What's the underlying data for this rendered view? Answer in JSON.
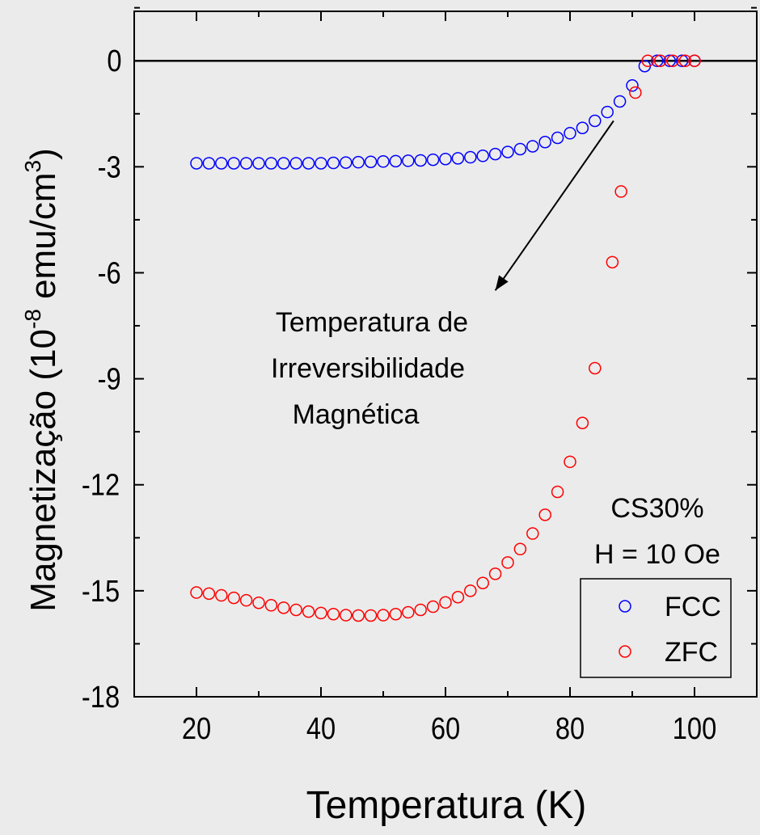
{
  "chart_data": {
    "type": "scatter",
    "xlabel": "Temperatura (K)",
    "ylabel": {
      "prefix": "Magnetização (10",
      "exp1": "-8",
      "mid": " emu/cm",
      "exp2": "3",
      "suffix": ")"
    },
    "xlim": [
      10,
      110
    ],
    "ylim": [
      -18,
      1.4
    ],
    "x_ticks": [
      "20",
      "40",
      "60",
      "80",
      "100"
    ],
    "x_tick_values": [
      20,
      40,
      60,
      80,
      100
    ],
    "y_ticks": [
      "0",
      "-3",
      "-6",
      "-9",
      "-12",
      "-15",
      "-18"
    ],
    "y_tick_values": [
      0,
      -3,
      -6,
      -9,
      -12,
      -15,
      -18
    ],
    "grid": false,
    "zero_line": true,
    "legend_placement": "bottom-right",
    "sample_label": "CS30%",
    "field_label": "H = 10 Oe",
    "annotation": {
      "lines": [
        "Temperatura de",
        "Irreversibilidade",
        "Magnética"
      ],
      "arrow_from": [
        87,
        -1.7
      ],
      "arrow_to": [
        68,
        -6.5
      ]
    },
    "series": [
      {
        "name": "FCC",
        "color": "#0000ff",
        "marker": "open-circle",
        "x": [
          20,
          22,
          24,
          26,
          28,
          30,
          32,
          34,
          36,
          38,
          40,
          42,
          44,
          46,
          48,
          50,
          52,
          54,
          56,
          58,
          60,
          62,
          64,
          66,
          68,
          70,
          72,
          74,
          76,
          78,
          80,
          82,
          84,
          86,
          88,
          90,
          92,
          94,
          96,
          98,
          100
        ],
        "y": [
          -2.9,
          -2.9,
          -2.9,
          -2.9,
          -2.9,
          -2.9,
          -2.9,
          -2.9,
          -2.9,
          -2.9,
          -2.9,
          -2.89,
          -2.88,
          -2.87,
          -2.86,
          -2.85,
          -2.84,
          -2.83,
          -2.82,
          -2.8,
          -2.78,
          -2.76,
          -2.73,
          -2.69,
          -2.64,
          -2.58,
          -2.5,
          -2.42,
          -2.3,
          -2.18,
          -2.05,
          -1.9,
          -1.7,
          -1.45,
          -1.15,
          -0.7,
          -0.15,
          0.0,
          0.0,
          0.0,
          0.0
        ]
      },
      {
        "name": "ZFC",
        "color": "#ff0000",
        "marker": "open-circle",
        "x": [
          20,
          22,
          24,
          26,
          28,
          30,
          32,
          34,
          36,
          38,
          40,
          42,
          44,
          46,
          48,
          50,
          52,
          54,
          56,
          58,
          60,
          62,
          64,
          66,
          68,
          70,
          72,
          74,
          76,
          78,
          80,
          82,
          84,
          86.8,
          88.2,
          90.5,
          92.5,
          94.5,
          96.5,
          98.5,
          100
        ],
        "y": [
          -15.05,
          -15.08,
          -15.13,
          -15.2,
          -15.27,
          -15.34,
          -15.41,
          -15.48,
          -15.54,
          -15.59,
          -15.63,
          -15.66,
          -15.69,
          -15.7,
          -15.7,
          -15.69,
          -15.66,
          -15.61,
          -15.54,
          -15.45,
          -15.33,
          -15.18,
          -15.0,
          -14.78,
          -14.52,
          -14.2,
          -13.82,
          -13.38,
          -12.85,
          -12.2,
          -11.35,
          -10.25,
          -8.7,
          -5.7,
          -3.7,
          -0.9,
          0.0,
          0.0,
          0.0,
          0.0,
          0.0
        ]
      }
    ]
  }
}
